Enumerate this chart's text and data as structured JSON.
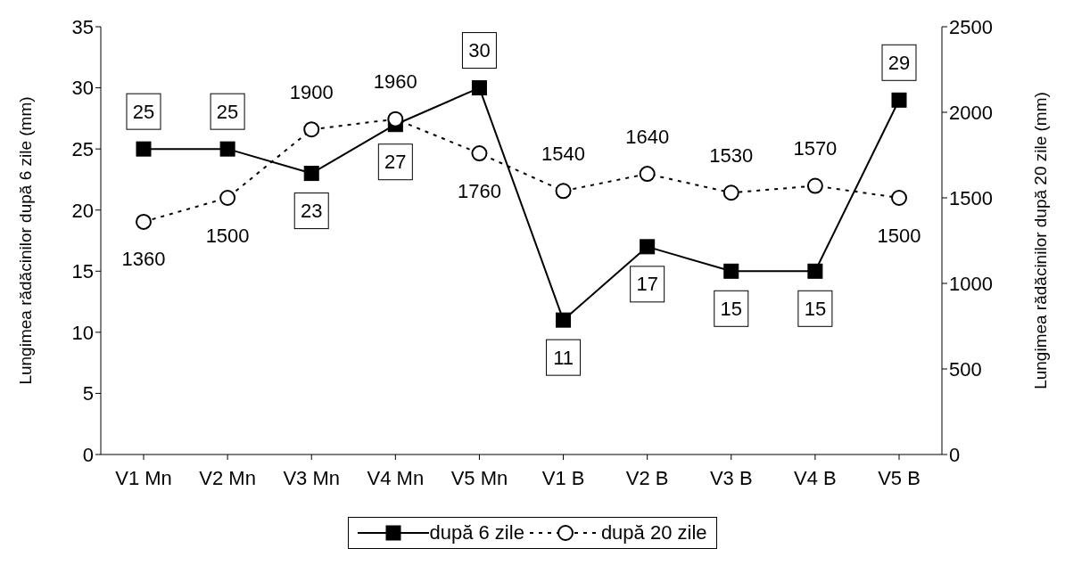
{
  "chart_data": {
    "type": "line",
    "categories": [
      "V1 Mn",
      "V2 Mn",
      "V3 Mn",
      "V4 Mn",
      "V5 Mn",
      "V1 B",
      "V2 B",
      "V3 B",
      "V4 B",
      "V5 B"
    ],
    "series": [
      {
        "name": "după 6 zile",
        "color": "#000000",
        "marker": "square",
        "line_style": "solid",
        "values": [
          25,
          25,
          23,
          27,
          30,
          11,
          17,
          15,
          15,
          29
        ]
      },
      {
        "name": "după 20 zile",
        "color": "#000000",
        "marker": "circle",
        "line_style": "dotted",
        "axis": "y2",
        "values": [
          1360,
          1500,
          1900,
          1960,
          1760,
          1540,
          1640,
          1530,
          1570,
          1500
        ]
      }
    ],
    "ylabel": "Lungimea rădăcinilor după 6 zile (mm)",
    "y2label": "Lungimea rădăcinilor după 20 zile (mm)",
    "ylim": [
      0,
      35
    ],
    "yticks": [
      0,
      5,
      10,
      15,
      20,
      25,
      30,
      35
    ],
    "y2lim": [
      0,
      2500
    ],
    "y2ticks": [
      0,
      500,
      1000,
      1500,
      2000,
      2500
    ],
    "data_labels": true,
    "grid": false,
    "legend": "bottom"
  }
}
